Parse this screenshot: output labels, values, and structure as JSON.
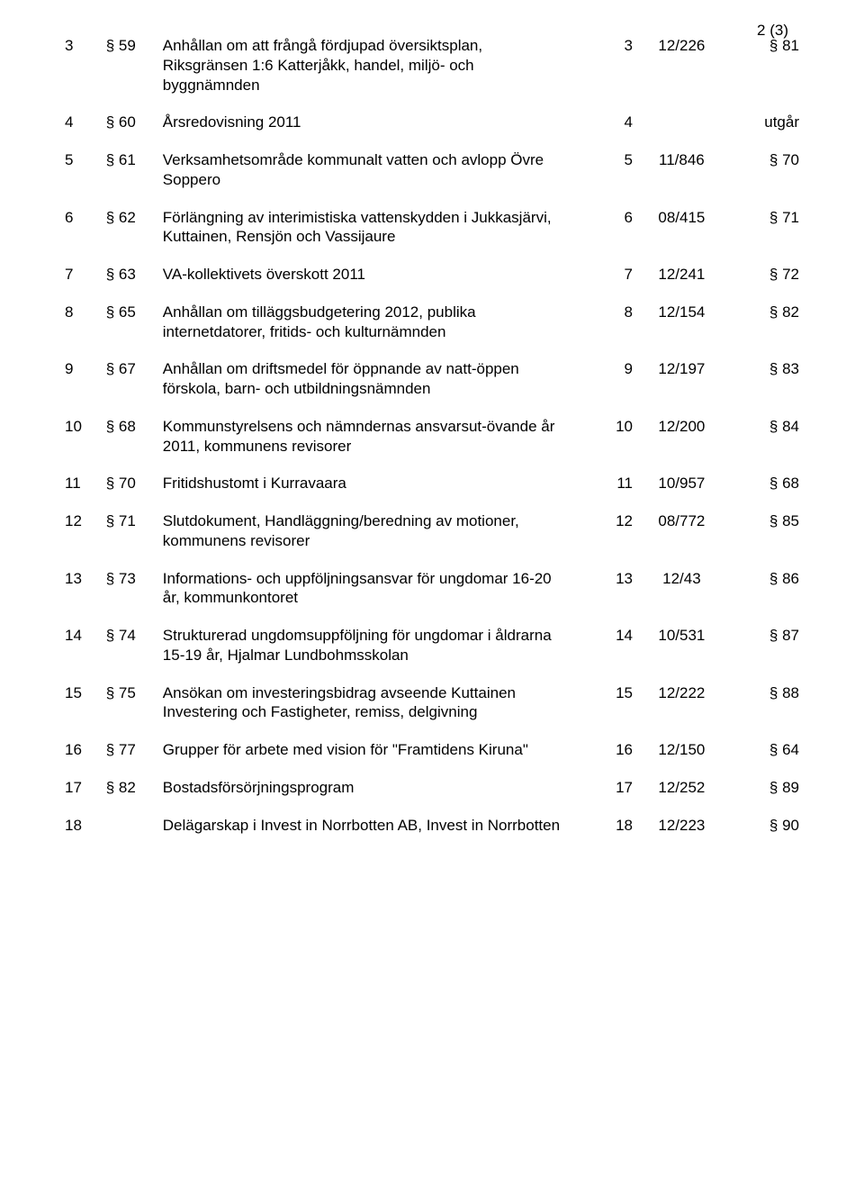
{
  "page_indicator": "2 (3)",
  "font": {
    "family": "Arial",
    "size_pt": 13,
    "color": "#000000"
  },
  "background_color": "#ffffff",
  "rows": [
    {
      "n": "3",
      "para": "§ 59",
      "desc": "Anhållan om att frångå fördjupad översiktsplan, Riksgränsen 1:6 Katterjåkk, handel, miljö- och byggnämnden",
      "c4": "3",
      "c5": "12/226",
      "c6": "§ 81"
    },
    {
      "n": "4",
      "para": "§ 60",
      "desc": "Årsredovisning 2011",
      "c4": "4",
      "c5": "",
      "c6": "utgår"
    },
    {
      "n": "5",
      "para": "§ 61",
      "desc": "Verksamhetsområde kommunalt vatten och avlopp Övre Soppero",
      "c4": "5",
      "c5": "11/846",
      "c6": "§ 70"
    },
    {
      "n": "6",
      "para": "§ 62",
      "desc": "Förlängning av interimistiska vattenskydden i Jukkasjärvi, Kuttainen, Rensjön och Vassijaure",
      "c4": "6",
      "c5": "08/415",
      "c6": "§ 71"
    },
    {
      "n": "7",
      "para": "§ 63",
      "desc": "VA-kollektivets överskott 2011",
      "c4": "7",
      "c5": "12/241",
      "c6": "§ 72"
    },
    {
      "n": "8",
      "para": "§ 65",
      "desc": "Anhållan om tilläggsbudgetering 2012, publika internetdatorer, fritids- och kulturnämnden",
      "c4": "8",
      "c5": "12/154",
      "c6": "§ 82"
    },
    {
      "n": "9",
      "para": "§ 67",
      "desc": "Anhållan om driftsmedel för öppnande av natt-öppen förskola, barn- och utbildningsnämnden",
      "c4": "9",
      "c5": "12/197",
      "c6": "§ 83"
    },
    {
      "n": "10",
      "para": "§ 68",
      "desc": "Kommunstyrelsens och nämndernas ansvarsut-övande år 2011, kommunens revisorer",
      "c4": "10",
      "c5": "12/200",
      "c6": "§ 84"
    },
    {
      "n": "11",
      "para": "§ 70",
      "desc": "Fritidshustomt i Kurravaara",
      "c4": "11",
      "c5": "10/957",
      "c6": "§ 68"
    },
    {
      "n": "12",
      "para": "§ 71",
      "desc": "Slutdokument, Handläggning/beredning av motioner, kommunens revisorer",
      "c4": "12",
      "c5": "08/772",
      "c6": "§ 85"
    },
    {
      "n": "13",
      "para": "§ 73",
      "desc": "Informations- och uppföljningsansvar för ungdomar 16-20 år, kommunkontoret",
      "c4": "13",
      "c5": "12/43",
      "c6": "§ 86"
    },
    {
      "n": "14",
      "para": "§ 74",
      "desc": "Strukturerad ungdomsuppföljning för ungdomar i åldrarna 15-19 år, Hjalmar Lundbohmsskolan",
      "c4": "14",
      "c5": "10/531",
      "c6": "§ 87"
    },
    {
      "n": "15",
      "para": "§ 75",
      "desc": "Ansökan om investeringsbidrag avseende Kuttainen Investering och Fastigheter, remiss, delgivning",
      "c4": "15",
      "c5": "12/222",
      "c6": "§ 88"
    },
    {
      "n": "16",
      "para": "§ 77",
      "desc": "Grupper för arbete med vision för \"Framtidens Kiruna\"",
      "c4": "16",
      "c5": "12/150",
      "c6": "§ 64"
    },
    {
      "n": "17",
      "para": "§ 82",
      "desc": "Bostadsförsörjningsprogram",
      "c4": "17",
      "c5": "12/252",
      "c6": "§ 89"
    },
    {
      "n": "18",
      "para": "",
      "desc": "Delägarskap i Invest in Norrbotten AB, Invest in Norrbotten",
      "c4": "18",
      "c5": "12/223",
      "c6": "§ 90"
    }
  ]
}
